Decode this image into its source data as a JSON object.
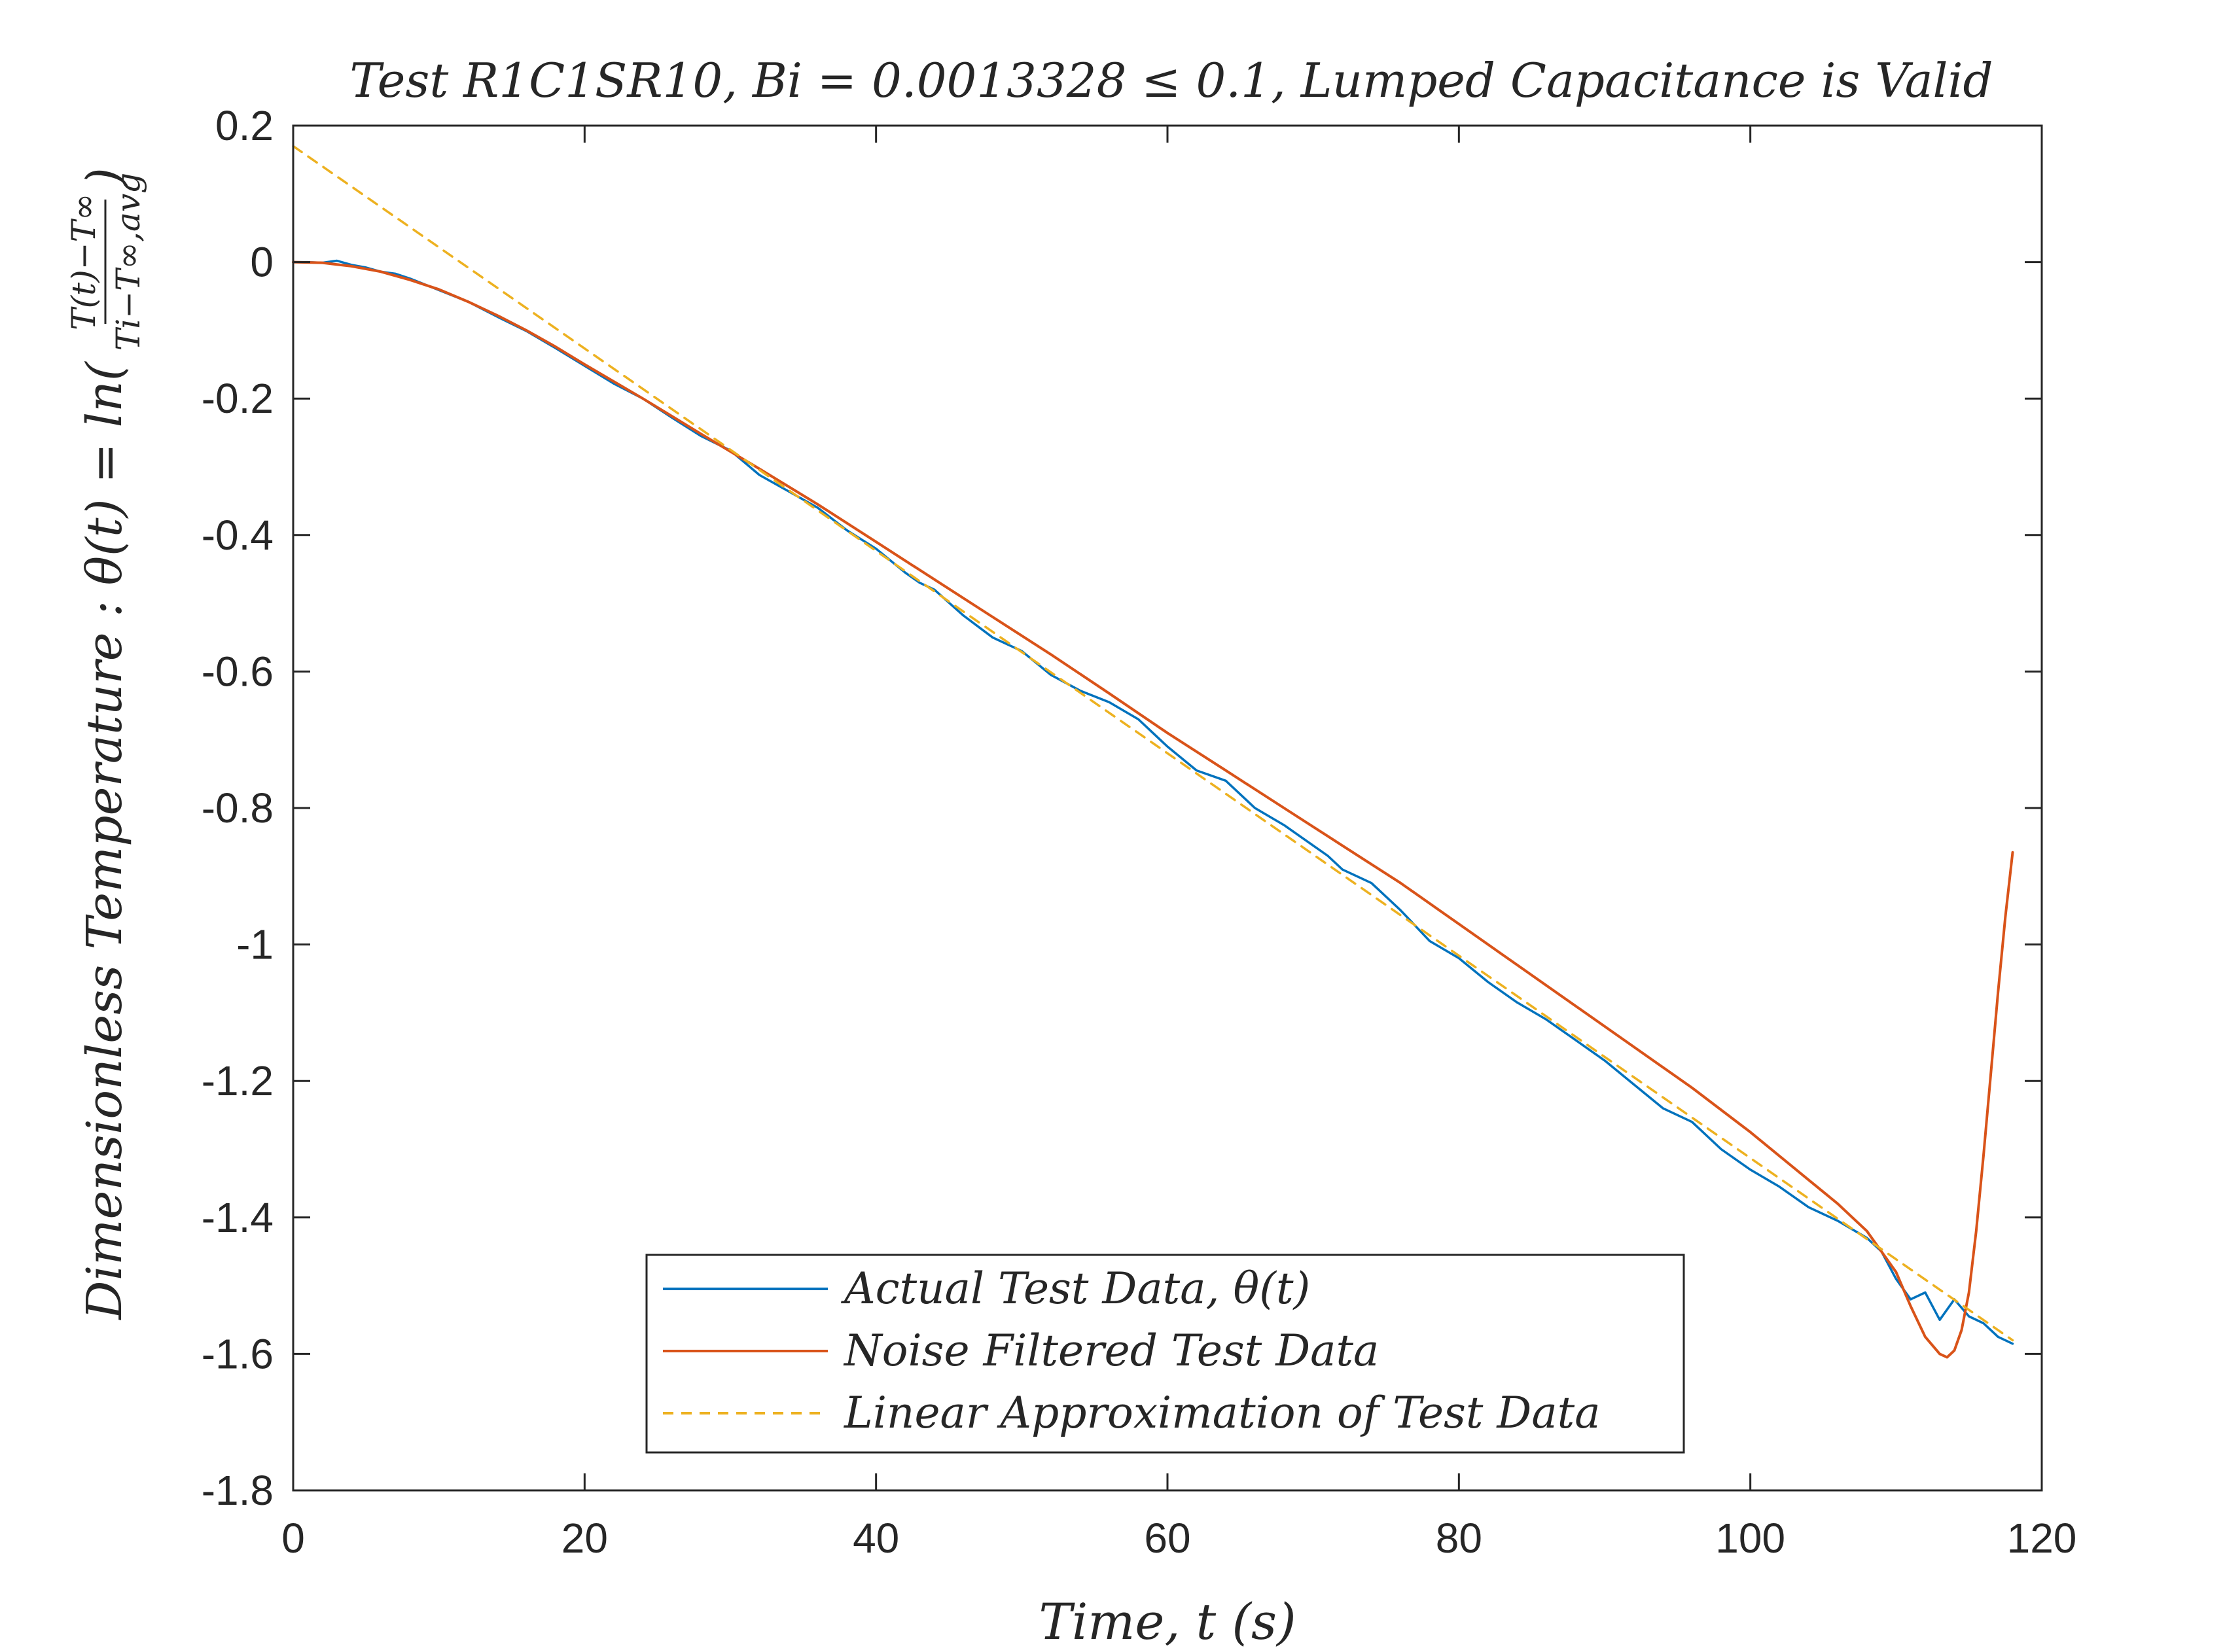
{
  "chart_data": {
    "type": "line",
    "title": "Test R1C1SR10,  Bi  =  0.0013328 ≤ 0.1,  Lumped Capacitance is Valid",
    "xlabel": "Time,  t (s)",
    "ylabel": "Dimensionless Temperature : θ(t) =  ln(",
    "ylabel_fraction": {
      "numerator": "T(t)−T∞",
      "denominator": "Ti−T∞,avg"
    },
    "xlim": [
      0,
      120
    ],
    "ylim": [
      -1.8,
      0.2
    ],
    "xticks": [
      0,
      20,
      40,
      60,
      80,
      100,
      120
    ],
    "yticks": [
      0.2,
      0,
      -0.2,
      -0.4,
      -0.6,
      -0.8,
      -1,
      -1.2,
      -1.4,
      -1.6,
      -1.8
    ],
    "grid": false,
    "legend_position": "bottom-center",
    "series": [
      {
        "name": "Actual Test Data, θ(t)",
        "color": "#0072BD",
        "style": "solid",
        "x": [
          0,
          1,
          2,
          3,
          4,
          5,
          6,
          7,
          8,
          10,
          12,
          14,
          16,
          18,
          20,
          22,
          24,
          26,
          28,
          30,
          32,
          34,
          36,
          38,
          40,
          42,
          43,
          44,
          46,
          48,
          50,
          52,
          54,
          56,
          58,
          60,
          62,
          64,
          66,
          68,
          70,
          71,
          72,
          74,
          76,
          78,
          80,
          82,
          84,
          86,
          88,
          90,
          92,
          94,
          96,
          98,
          100,
          102,
          104,
          106,
          108,
          109,
          110,
          111,
          112,
          113,
          114,
          115,
          116,
          117,
          118
        ],
        "y": [
          0.0,
          0.0,
          -0.001,
          0.002,
          -0.004,
          -0.008,
          -0.014,
          -0.017,
          -0.024,
          -0.041,
          -0.058,
          -0.08,
          -0.101,
          -0.126,
          -0.152,
          -0.178,
          -0.2,
          -0.228,
          -0.255,
          -0.276,
          -0.312,
          -0.336,
          -0.36,
          -0.393,
          -0.42,
          -0.455,
          -0.47,
          -0.48,
          -0.518,
          -0.55,
          -0.57,
          -0.605,
          -0.628,
          -0.645,
          -0.67,
          -0.71,
          -0.745,
          -0.76,
          -0.8,
          -0.825,
          -0.855,
          -0.87,
          -0.89,
          -0.91,
          -0.95,
          -0.995,
          -1.02,
          -1.055,
          -1.085,
          -1.11,
          -1.14,
          -1.17,
          -1.205,
          -1.24,
          -1.26,
          -1.3,
          -1.33,
          -1.355,
          -1.385,
          -1.405,
          -1.43,
          -1.45,
          -1.49,
          -1.52,
          -1.51,
          -1.55,
          -1.52,
          -1.545,
          -1.555,
          -1.575,
          -1.585
        ]
      },
      {
        "name": "Noise Filtered Test Data",
        "color": "#D95319",
        "style": "solid",
        "x": [
          0,
          2,
          4,
          6,
          8,
          10,
          12,
          14,
          16,
          18,
          20,
          24,
          28,
          32,
          36,
          40,
          44,
          48,
          52,
          56,
          60,
          64,
          68,
          72,
          76,
          80,
          84,
          88,
          92,
          96,
          100,
          104,
          106,
          108,
          110,
          111,
          112,
          113,
          113.5,
          114,
          114.5,
          115,
          115.5,
          116,
          116.5,
          117,
          117.5,
          118
        ],
        "y": [
          0.0,
          -0.001,
          -0.006,
          -0.014,
          -0.026,
          -0.04,
          -0.058,
          -0.078,
          -0.1,
          -0.124,
          -0.15,
          -0.2,
          -0.252,
          -0.303,
          -0.355,
          -0.41,
          -0.465,
          -0.52,
          -0.575,
          -0.632,
          -0.69,
          -0.745,
          -0.8,
          -0.855,
          -0.91,
          -0.97,
          -1.03,
          -1.09,
          -1.15,
          -1.21,
          -1.275,
          -1.345,
          -1.38,
          -1.42,
          -1.48,
          -1.53,
          -1.575,
          -1.6,
          -1.605,
          -1.595,
          -1.565,
          -1.51,
          -1.42,
          -1.31,
          -1.19,
          -1.07,
          -0.96,
          -0.865
        ]
      },
      {
        "name": "Linear Approximation of Test Data",
        "color": "#EDB120",
        "style": "dashed",
        "x": [
          0,
          118
        ],
        "y": [
          0.17,
          -1.58
        ]
      }
    ]
  }
}
